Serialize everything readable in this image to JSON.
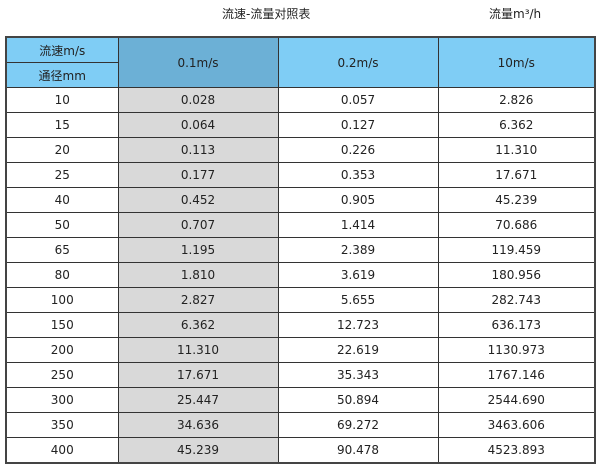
{
  "title": "流速-流量对照表",
  "unit_label": "流量m³/h",
  "header": {
    "velocity_label": "流速m/s",
    "diameter_label": "通径mm",
    "columns": [
      "0.1m/s",
      "0.2m/s",
      "10m/s"
    ]
  },
  "colors": {
    "header": "#7fcdf5",
    "header_highlight": "#6cb0d6",
    "highlight_column": "#d9d9d9"
  },
  "rows": [
    {
      "dn": "10",
      "v": [
        "0.028",
        "0.057",
        "2.826"
      ]
    },
    {
      "dn": "15",
      "v": [
        "0.064",
        "0.127",
        "6.362"
      ]
    },
    {
      "dn": "20",
      "v": [
        "0.113",
        "0.226",
        "11.310"
      ]
    },
    {
      "dn": "25",
      "v": [
        "0.177",
        "0.353",
        "17.671"
      ]
    },
    {
      "dn": "40",
      "v": [
        "0.452",
        "0.905",
        "45.239"
      ]
    },
    {
      "dn": "50",
      "v": [
        "0.707",
        "1.414",
        "70.686"
      ]
    },
    {
      "dn": "65",
      "v": [
        "1.195",
        "2.389",
        "119.459"
      ]
    },
    {
      "dn": "80",
      "v": [
        "1.810",
        "3.619",
        "180.956"
      ]
    },
    {
      "dn": "100",
      "v": [
        "2.827",
        "5.655",
        "282.743"
      ]
    },
    {
      "dn": "150",
      "v": [
        "6.362",
        "12.723",
        "636.173"
      ]
    },
    {
      "dn": "200",
      "v": [
        "11.310",
        "22.619",
        "1130.973"
      ]
    },
    {
      "dn": "250",
      "v": [
        "17.671",
        "35.343",
        "1767.146"
      ]
    },
    {
      "dn": "300",
      "v": [
        "25.447",
        "50.894",
        "2544.690"
      ]
    },
    {
      "dn": "350",
      "v": [
        "34.636",
        "69.272",
        "3463.606"
      ]
    },
    {
      "dn": "400",
      "v": [
        "45.239",
        "90.478",
        "4523.893"
      ]
    }
  ]
}
